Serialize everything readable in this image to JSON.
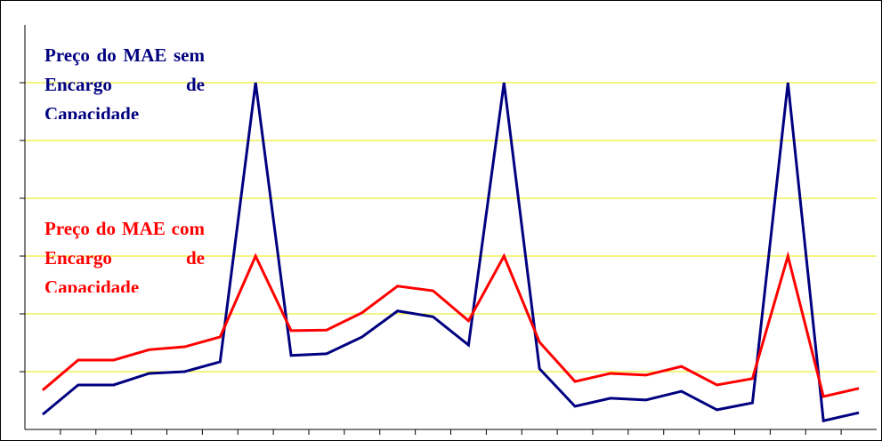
{
  "chart_data": {
    "type": "line",
    "categories": [
      null,
      null,
      null,
      null,
      null,
      null,
      null,
      null,
      null,
      null,
      null,
      null,
      null,
      null,
      null,
      null,
      null,
      null,
      null,
      null,
      null,
      null,
      null,
      null
    ],
    "series": [
      {
        "name": "Preço do MAE sem Encargo de Capacidade",
        "color": "#000080",
        "values": [
          0.26,
          0.77,
          0.77,
          0.97,
          1.0,
          1.17,
          6.0,
          1.28,
          1.31,
          1.6,
          2.05,
          1.95,
          1.46,
          6.0,
          1.05,
          0.4,
          0.54,
          0.51,
          0.66,
          0.34,
          0.46,
          6.0,
          0.15,
          0.29
        ]
      },
      {
        "name": "Preço do MAE com Encargo de Capacidade",
        "color": "#ff0000",
        "values": [
          0.68,
          1.2,
          1.2,
          1.38,
          1.43,
          1.6,
          3.0,
          1.71,
          1.72,
          2.02,
          2.48,
          2.4,
          1.88,
          3.0,
          1.51,
          0.83,
          0.97,
          0.94,
          1.09,
          0.77,
          0.88,
          3.0,
          0.57,
          0.71
        ]
      }
    ],
    "ylim": [
      0,
      7
    ],
    "yticks": [
      1,
      2,
      3,
      4,
      5,
      6
    ],
    "grid": true
  }
}
